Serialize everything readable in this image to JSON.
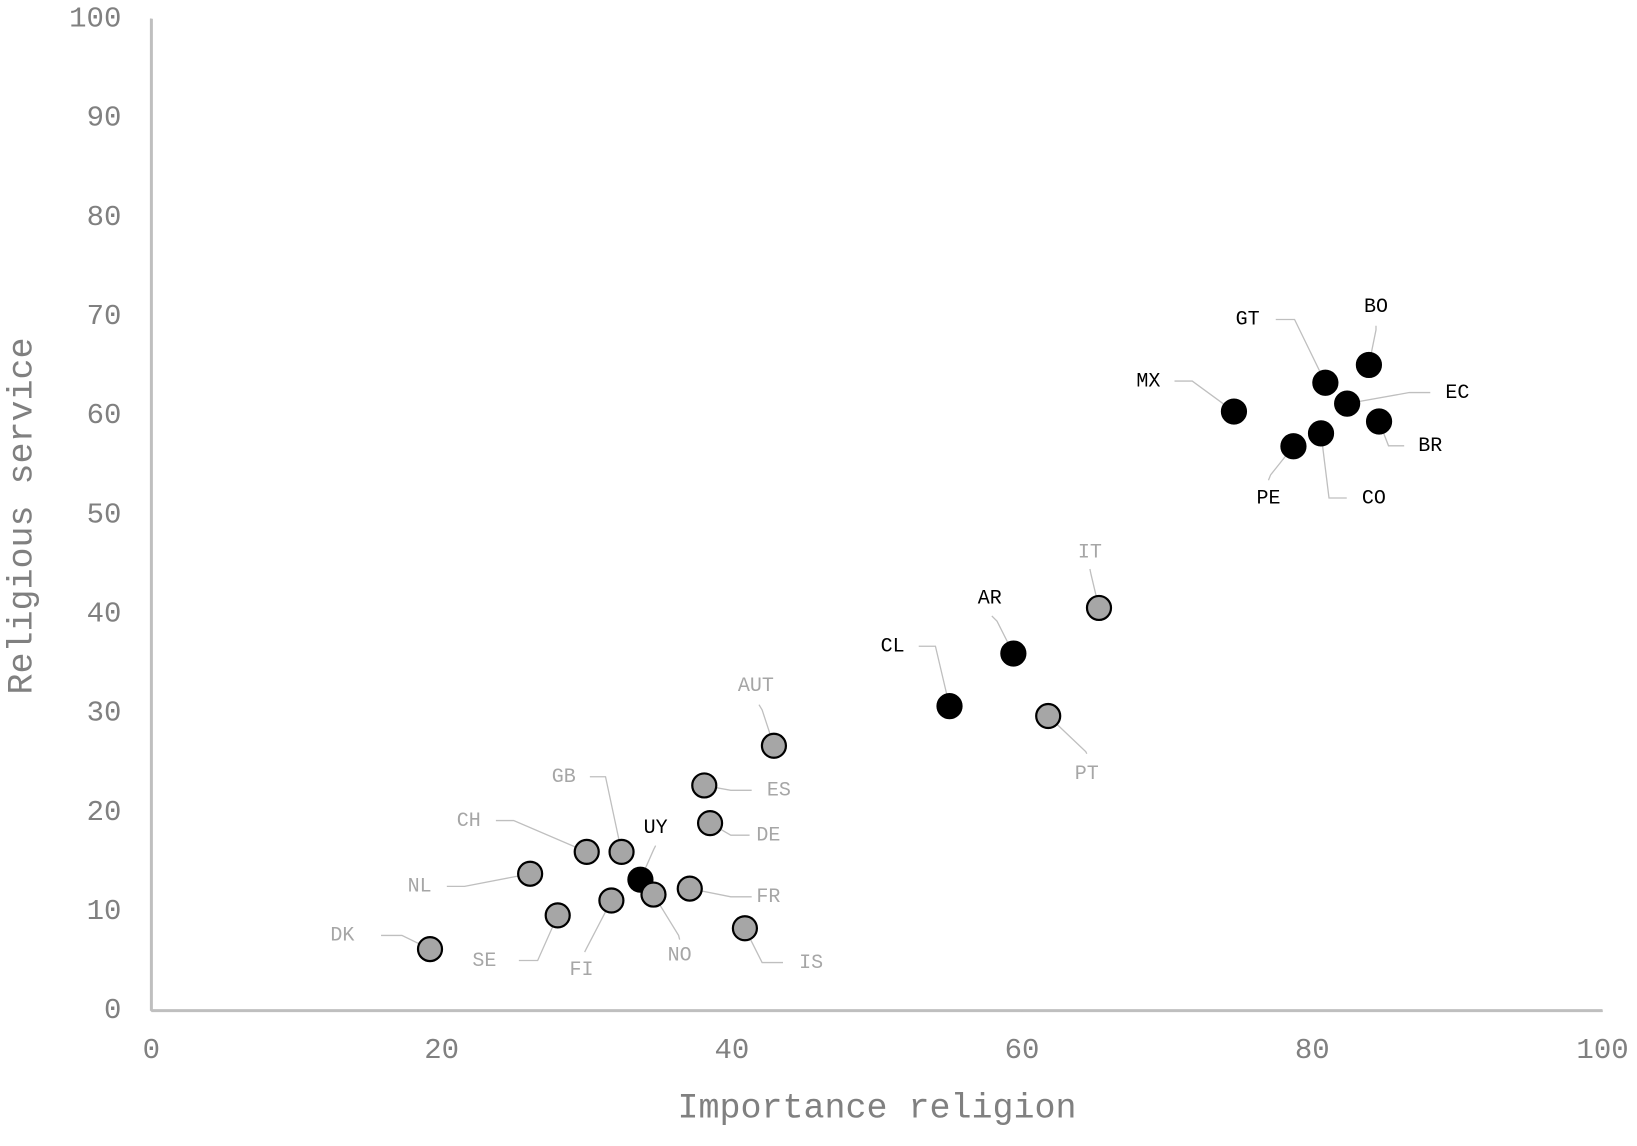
{
  "chart_data": {
    "type": "scatter",
    "x_label": "Importance religion",
    "y_label": "Religious service",
    "labels": [
      "DK",
      "NL",
      "CH",
      "GB",
      "SE",
      "FI",
      "UY",
      "NO",
      "FR",
      "ES",
      "DE",
      "IS",
      "AUT",
      "CL",
      "AR",
      "PT",
      "IT",
      "MX",
      "PE",
      "CO",
      "GT",
      "EC",
      "BR",
      "BO"
    ],
    "x": [
      19.2,
      26.1,
      30.0,
      32.4,
      28.0,
      31.7,
      33.7,
      34.6,
      37.1,
      38.1,
      38.5,
      40.9,
      42.9,
      55.0,
      59.4,
      61.8,
      65.3,
      74.6,
      78.7,
      80.6,
      80.9,
      82.4,
      84.6,
      83.9
    ],
    "values": [
      6.2,
      13.8,
      16.0,
      16.0,
      9.6,
      11.1,
      13.2,
      11.7,
      12.3,
      22.7,
      18.9,
      8.3,
      26.7,
      30.7,
      36.0,
      29.7,
      40.6,
      60.4,
      56.9,
      58.2,
      63.3,
      61.2,
      59.4,
      65.1
    ],
    "colors": [
      "#a6a6a6",
      "#a6a6a6",
      "#a6a6a6",
      "#a6a6a6",
      "#a6a6a6",
      "#a6a6a6",
      "#000000",
      "#a6a6a6",
      "#a6a6a6",
      "#a6a6a6",
      "#a6a6a6",
      "#a6a6a6",
      "#a6a6a6",
      "#000000",
      "#000000",
      "#a6a6a6",
      "#a6a6a6",
      "#000000",
      "#000000",
      "#000000",
      "#000000",
      "#000000",
      "#000000",
      "#000000"
    ],
    "label_colors": [
      "#a6a6a6",
      "#a6a6a6",
      "#a6a6a6",
      "#a6a6a6",
      "#a6a6a6",
      "#a6a6a6",
      "#000000",
      "#a6a6a6",
      "#a6a6a6",
      "#a6a6a6",
      "#a6a6a6",
      "#a6a6a6",
      "#a6a6a6",
      "#000000",
      "#000000",
      "#a6a6a6",
      "#a6a6a6",
      "#000000",
      "#000000",
      "#000000",
      "#000000",
      "#000000",
      "#000000",
      "#000000"
    ],
    "xlim": [
      0,
      100
    ],
    "xticks": [
      0,
      20,
      40,
      60,
      80,
      100
    ],
    "ylim": [
      0,
      100
    ],
    "yticks": [
      0,
      10,
      20,
      30,
      40,
      50,
      60,
      70,
      80,
      90,
      100
    ],
    "grid": false
  }
}
